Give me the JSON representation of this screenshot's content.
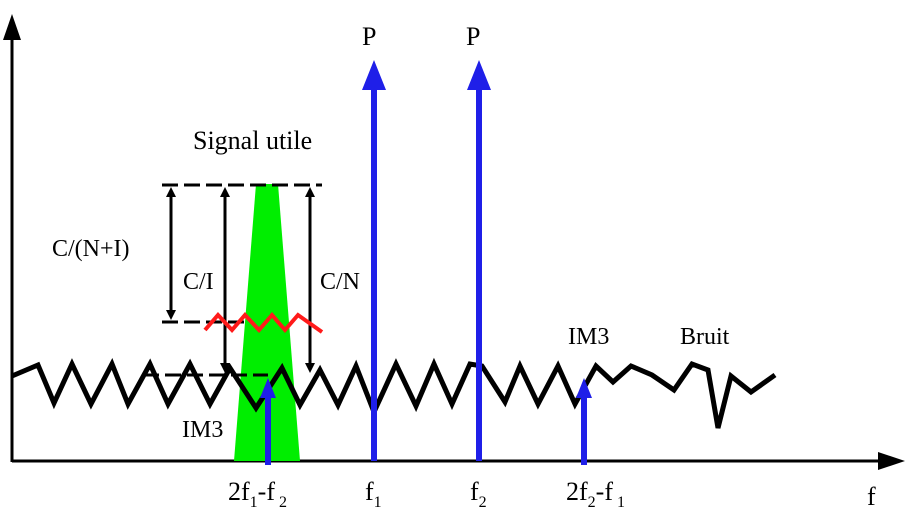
{
  "labels": {
    "p1": "P",
    "p2": "P",
    "signal_utile": "Signal utile",
    "c_over_n_plus_i": "C/(N+I)",
    "c_over_i": "C/I",
    "c_over_n": "C/N",
    "im3_right": "IM3",
    "bruit": "Bruit",
    "im3_left": "IM3",
    "f_axis": "f"
  },
  "ticks": {
    "t1": {
      "main": "2f",
      "sub1": "1",
      "mid": "-f",
      "sub2": "2"
    },
    "t2": {
      "main": "f",
      "sub1": "1"
    },
    "t3": {
      "main": "f",
      "sub1": "2"
    },
    "t4": {
      "main": "2f",
      "sub1": "2",
      "mid": "-f",
      "sub2": "1"
    }
  },
  "colors": {
    "carrier": "#1f1fe8",
    "signal": "#00ee00",
    "noise": "#000000",
    "interference": "#ff1a1a"
  }
}
